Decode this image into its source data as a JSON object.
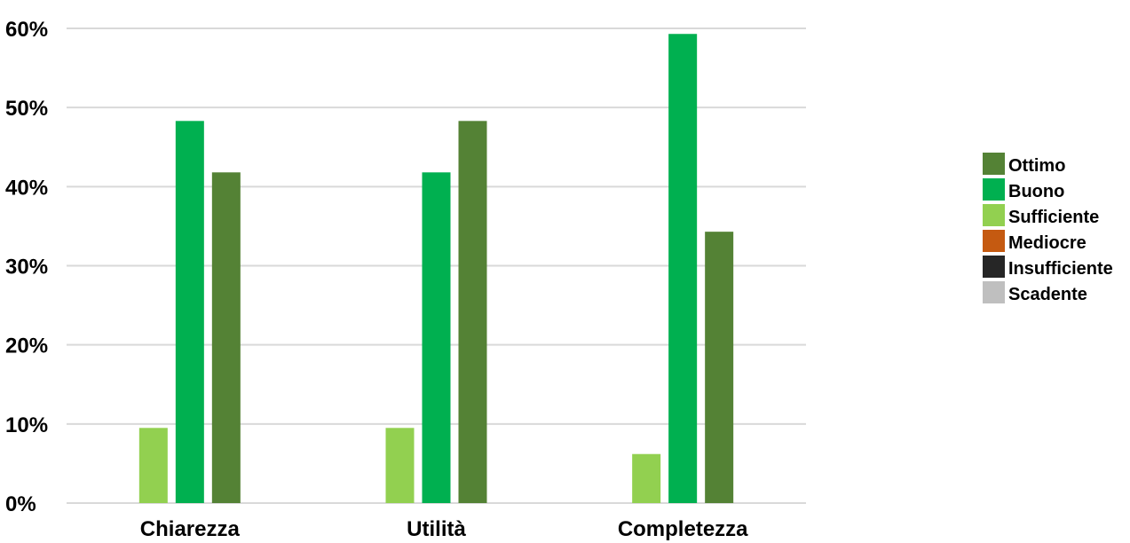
{
  "chart_data": {
    "type": "bar",
    "title": "",
    "xlabel": "",
    "ylabel": "",
    "categories": [
      "Chiarezza",
      "Utilità",
      "Completezza"
    ],
    "series": [
      {
        "name": "Sufficiente",
        "color": "#92d050",
        "values": [
          9.5,
          9.5,
          6.2
        ]
      },
      {
        "name": "Buono",
        "color": "#00b050",
        "values": [
          48.3,
          41.8,
          59.3
        ]
      },
      {
        "name": "Ottimo",
        "color": "#548235",
        "values": [
          41.8,
          48.3,
          34.3
        ]
      }
    ],
    "legend": {
      "placement": "right",
      "entries": [
        {
          "label": "Ottimo",
          "color": "#548235"
        },
        {
          "label": "Buono",
          "color": "#00b050"
        },
        {
          "label": "Sufficiente",
          "color": "#92d050"
        },
        {
          "label": "Mediocre",
          "color": "#c55a11"
        },
        {
          "label": "Insufficiente",
          "color": "#262626"
        },
        {
          "label": "Scadente",
          "color": "#bfbfbf"
        }
      ]
    },
    "ylim": [
      0,
      60
    ],
    "yticks": [
      0,
      10,
      20,
      30,
      40,
      50,
      60
    ],
    "ytick_labels": [
      "0%",
      "10%",
      "20%",
      "30%",
      "40%",
      "50%",
      "60%"
    ],
    "grid": true
  }
}
